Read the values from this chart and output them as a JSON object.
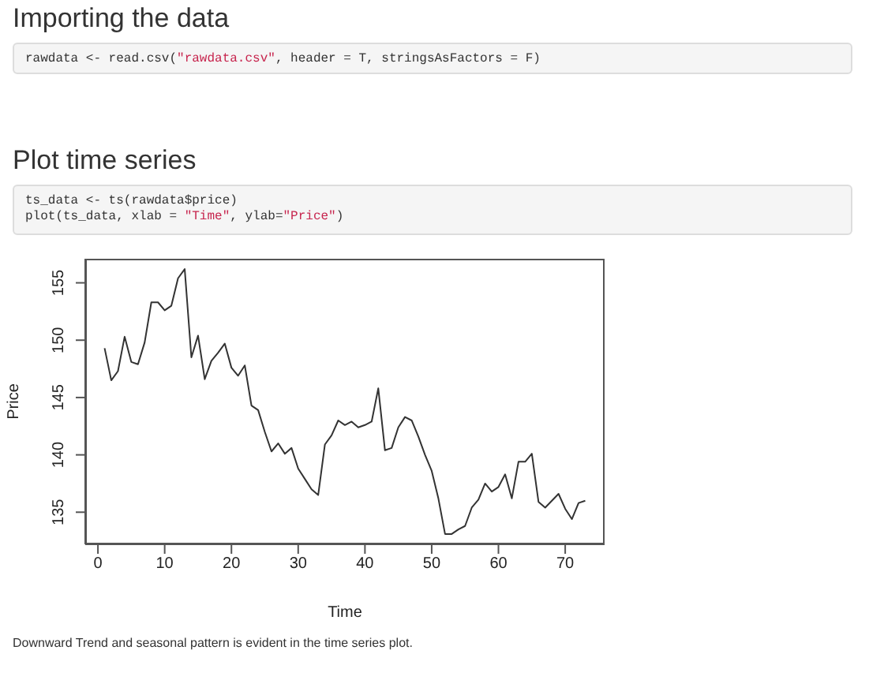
{
  "chart_data": {
    "type": "line",
    "xlabel": "Time",
    "ylabel": "Price",
    "annotations": [
      "Importing the data",
      "rawdata <- read.csv(\"rawdata.csv\", header = T, stringsAsFactors = F)",
      "Plot time series",
      "ts_data <- ts(rawdata$price)\nplot(ts_data, xlab = \"Time\", ylab=\"Price\")",
      "Downward Trend and seasonal pattern is evident in the time series plot."
    ],
    "x": [
      1,
      2,
      3,
      4,
      5,
      6,
      7,
      8,
      9,
      10,
      11,
      12,
      13,
      14,
      15,
      16,
      17,
      18,
      19,
      20,
      21,
      22,
      23,
      24,
      25,
      26,
      27,
      28,
      29,
      30,
      31,
      32,
      33,
      34,
      35,
      36,
      37,
      38,
      39,
      40,
      41,
      42,
      43,
      44,
      45,
      46,
      47,
      48,
      49,
      50,
      51,
      52,
      53,
      54,
      55,
      56,
      57,
      58,
      59,
      60,
      61,
      62,
      63,
      64,
      65,
      66,
      67,
      68,
      69,
      70,
      71,
      72,
      73
    ],
    "series": [
      {
        "color": "#333333",
        "values": [
          149.3,
          146.5,
          147.3,
          150.3,
          148.1,
          147.9,
          149.8,
          153.3,
          153.3,
          152.6,
          153.0,
          155.4,
          156.2,
          148.5,
          150.4,
          146.6,
          148.2,
          148.9,
          149.7,
          147.6,
          146.9,
          147.8,
          144.3,
          143.9,
          142.0,
          140.3,
          141.0,
          140.1,
          140.6,
          138.8,
          137.9,
          137.0,
          136.5,
          140.9,
          141.7,
          143.0,
          142.6,
          142.9,
          142.4,
          142.6,
          142.9,
          145.8,
          140.4,
          140.6,
          142.4,
          143.3,
          143.0,
          141.6,
          140.0,
          138.6,
          136.2,
          133.1,
          133.1,
          133.5,
          133.8,
          135.4,
          136.1,
          137.5,
          136.8,
          137.2,
          138.3,
          136.2,
          139.4,
          139.4,
          140.1,
          135.9,
          135.4,
          136.0,
          136.6,
          135.3,
          134.4,
          135.8,
          136.0
        ]
      }
    ],
    "xlim": [
      -1.9,
      75.9
    ],
    "xticks": [
      0,
      10,
      20,
      30,
      40,
      50,
      60,
      70
    ],
    "ylim": [
      132.2,
      157.1
    ],
    "yticks": [
      135,
      140,
      145,
      150,
      155
    ],
    "grid": false,
    "legend": false,
    "marker": "none",
    "line_style": "solid"
  }
}
